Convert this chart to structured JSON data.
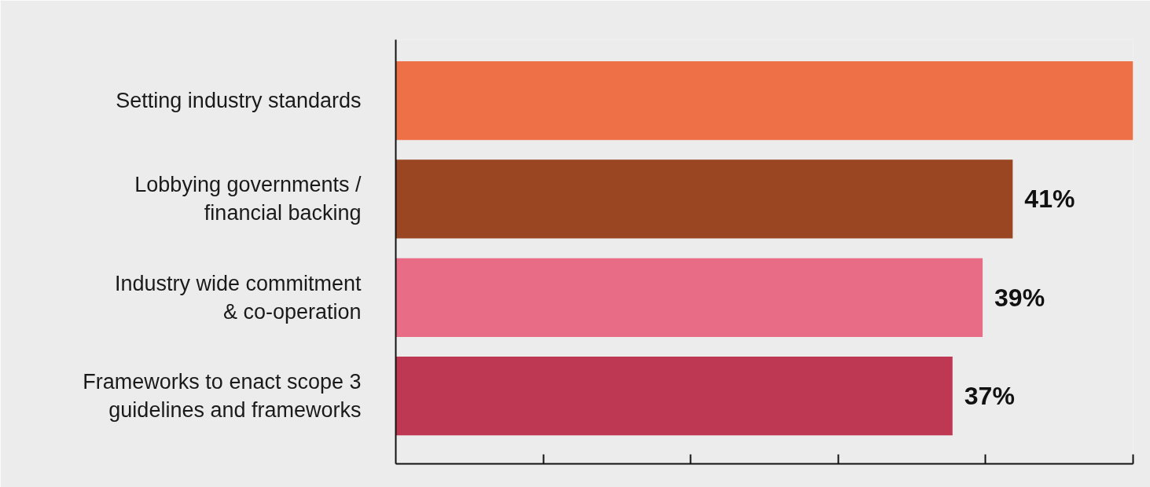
{
  "chart_data": {
    "type": "bar",
    "orientation": "horizontal",
    "categories": [
      "Setting industry standards",
      "Lobbying governments /\nfinancial backing",
      "Industry wide commitment\n& co-operation",
      "Frameworks to enact scope 3\nguidelines and frameworks"
    ],
    "values": [
      49,
      41,
      39,
      37
    ],
    "colors": [
      "#ed7046",
      "#9a4622",
      "#e86c85",
      "#be3854"
    ],
    "value_labels": [
      null,
      "41%",
      "39%",
      "37%"
    ],
    "xlim": [
      0,
      49
    ],
    "xticks": [
      {
        "value": 9.8,
        "label": null
      },
      {
        "value": 19.6,
        "label": null
      },
      {
        "value": 29.4,
        "label": null
      },
      {
        "value": 39.2,
        "label": null
      },
      {
        "value": 49,
        "label": null
      }
    ],
    "tick_labels": "y"
  }
}
